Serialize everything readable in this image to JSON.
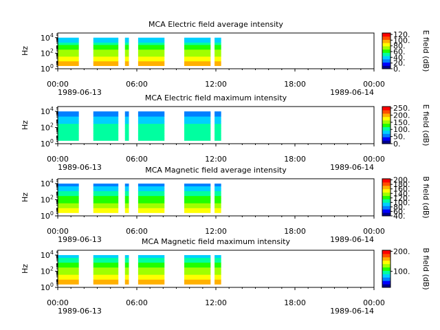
{
  "colorscale": [
    "#00008b",
    "#0000ff",
    "#0080ff",
    "#00d0ff",
    "#00ffa0",
    "#20ff00",
    "#a0ff00",
    "#ffff00",
    "#ffb000",
    "#ff5000",
    "#ff0000"
  ],
  "colors": {
    "axis": "#000000",
    "background": "#ffffff"
  },
  "chart_data": [
    {
      "type": "heatmap",
      "title": "MCA  Electric field average intensity",
      "ylabel": "Hz",
      "colorbar_label": "E field (dB)",
      "colorbar_ticks": [
        "0.",
        "20.",
        "40.",
        "60.",
        "80.",
        "100.",
        "120."
      ],
      "colorbar_range": [
        0,
        125
      ],
      "yticks": [
        "10^0",
        "10^2",
        "10^4"
      ],
      "xticks": [
        "00:00",
        "06:00",
        "12:00",
        "18:00",
        "00:00"
      ],
      "xdates": [
        "1989-06-13",
        "1989-06-14"
      ],
      "xrange_hours": [
        0,
        24
      ],
      "yrange_log10": [
        0,
        4.6
      ],
      "data_log10_range": [
        0.4,
        4.0
      ],
      "segments_hours": [
        [
          0.0,
          1.6
        ],
        [
          2.7,
          4.6
        ],
        [
          5.1,
          5.4
        ],
        [
          6.1,
          8.1
        ],
        [
          9.6,
          11.6
        ],
        [
          11.9,
          12.4
        ]
      ],
      "levels_by_band": [
        8,
        8,
        7,
        7,
        6,
        6,
        6,
        5,
        5,
        4,
        3,
        3
      ]
    },
    {
      "type": "heatmap",
      "title": "MCA  Electric field maximum intensity",
      "ylabel": "Hz",
      "colorbar_label": "E field (dB)",
      "colorbar_ticks": [
        "0.",
        "50.",
        "100.",
        "150.",
        "200.",
        "250."
      ],
      "colorbar_range": [
        0,
        260
      ],
      "yticks": [
        "10^0",
        "10^2",
        "10^4"
      ],
      "xticks": [
        "00:00",
        "06:00",
        "12:00",
        "18:00",
        "00:00"
      ],
      "xdates": [
        "1989-06-13",
        "1989-06-14"
      ],
      "xrange_hours": [
        0,
        24
      ],
      "yrange_log10": [
        0,
        4.6
      ],
      "data_log10_range": [
        0.4,
        4.0
      ],
      "segments_hours": [
        [
          0.0,
          1.6
        ],
        [
          2.7,
          4.6
        ],
        [
          5.1,
          5.4
        ],
        [
          6.1,
          8.1
        ],
        [
          9.6,
          11.6
        ],
        [
          11.9,
          12.4
        ]
      ],
      "levels_by_band": [
        4,
        4,
        4,
        4,
        4,
        4,
        4,
        3,
        3,
        3,
        2,
        2
      ]
    },
    {
      "type": "heatmap",
      "title": "MCA  Magnetic field average intensity",
      "ylabel": "Hz",
      "colorbar_label": "B field (dB)",
      "colorbar_ticks": [
        "40.",
        "60.",
        "80.",
        "100.",
        "120.",
        "140.",
        "160.",
        "180.",
        "200."
      ],
      "colorbar_range": [
        40,
        205
      ],
      "yticks": [
        "10^0",
        "10^2",
        "10^4"
      ],
      "xticks": [
        "00:00",
        "06:00",
        "12:00",
        "18:00",
        "00:00"
      ],
      "xdates": [
        "1989-06-13",
        "1989-06-14"
      ],
      "xrange_hours": [
        0,
        24
      ],
      "yrange_log10": [
        0,
        4.6
      ],
      "data_log10_range": [
        0.4,
        4.0
      ],
      "segments_hours": [
        [
          0.0,
          1.6
        ],
        [
          2.7,
          4.6
        ],
        [
          5.1,
          5.4
        ],
        [
          6.1,
          8.1
        ],
        [
          9.6,
          11.6
        ],
        [
          11.9,
          12.4
        ]
      ],
      "levels_by_band": [
        7,
        7,
        6,
        6,
        5,
        5,
        5,
        4,
        4,
        3,
        3,
        2
      ]
    },
    {
      "type": "heatmap",
      "title": "MCA  Magnetic field maximum intensity",
      "ylabel": "Hz",
      "colorbar_label": "B field (dB)",
      "colorbar_ticks": [
        "100.",
        "200."
      ],
      "colorbar_range": [
        20,
        205
      ],
      "yticks": [
        "10^0",
        "10^2",
        "10^4"
      ],
      "xticks": [
        "00:00",
        "06:00",
        "12:00",
        "18:00",
        "00:00"
      ],
      "xdates": [
        "1989-06-13",
        "1989-06-14"
      ],
      "xrange_hours": [
        0,
        24
      ],
      "yrange_log10": [
        0,
        4.6
      ],
      "data_log10_range": [
        0.4,
        4.0
      ],
      "segments_hours": [
        [
          0.0,
          1.6
        ],
        [
          2.7,
          4.6
        ],
        [
          5.1,
          5.4
        ],
        [
          6.1,
          8.1
        ],
        [
          9.6,
          11.6
        ],
        [
          11.9,
          12.4
        ]
      ],
      "levels_by_band": [
        8,
        8,
        7,
        7,
        6,
        6,
        6,
        5,
        5,
        4,
        4,
        3
      ]
    }
  ]
}
